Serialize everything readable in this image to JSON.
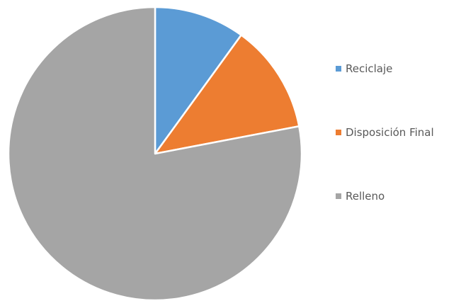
{
  "chart_data": {
    "type": "pie",
    "title": "",
    "slices": [
      {
        "label": "Reciclaje",
        "value": 10,
        "color": "#5B9BD5"
      },
      {
        "label": "Disposición Final",
        "value": 12,
        "color": "#ED7D31"
      },
      {
        "label": "Relleno",
        "value": 78,
        "color": "#A5A5A5"
      }
    ],
    "legend_position": "right"
  }
}
